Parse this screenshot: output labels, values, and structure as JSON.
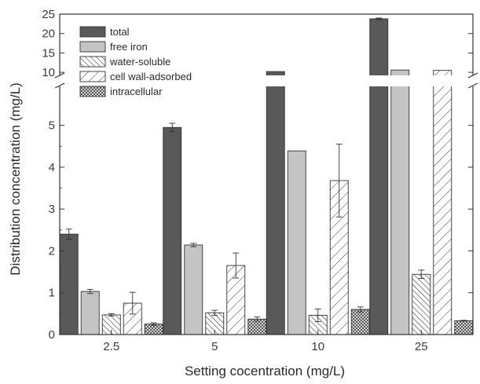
{
  "chart_data": {
    "type": "bar",
    "xlabel": "Setting cocentration (mg/L)",
    "ylabel": "Distribution concentration (mg/L)",
    "categories": [
      "2.5",
      "5",
      "10",
      "25"
    ],
    "y_axis_break": {
      "lower_range": [
        0,
        5.5
      ],
      "upper_range": [
        8,
        25
      ],
      "lower_ticks": [
        "0",
        "1",
        "2",
        "3",
        "4",
        "5"
      ],
      "upper_ticks": [
        "10",
        "15",
        "20",
        "25"
      ]
    },
    "legend_position": "top-left",
    "series": [
      {
        "name": "total",
        "values": [
          2.4,
          4.95,
          10.2,
          23.8
        ],
        "errors": [
          0.12,
          0.1,
          0,
          0.2
        ],
        "pattern": "dark-solid"
      },
      {
        "name": "free iron",
        "values": [
          1.03,
          2.14,
          4.39,
          10.6
        ],
        "errors": [
          0.05,
          0.04,
          0,
          0
        ],
        "pattern": "light-solid"
      },
      {
        "name": "water-soluble",
        "values": [
          0.47,
          0.52,
          0.46,
          1.44
        ],
        "errors": [
          0.03,
          0.06,
          0.15,
          0.1
        ],
        "pattern": "dense-hatch"
      },
      {
        "name": "cell wall-adsorbed",
        "values": [
          0.75,
          1.65,
          3.68,
          10.5
        ],
        "errors": [
          0.26,
          0.3,
          0.87,
          0
        ],
        "pattern": "wide-hatch"
      },
      {
        "name": "intracellular",
        "values": [
          0.25,
          0.37,
          0.6,
          0.33
        ],
        "errors": [
          0.03,
          0.05,
          0.06,
          0.01
        ],
        "pattern": "crosshatch"
      }
    ]
  }
}
